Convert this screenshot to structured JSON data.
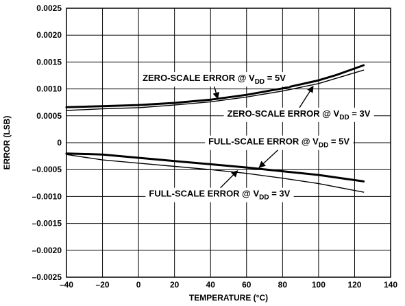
{
  "chart_data": {
    "type": "line",
    "xlabel": "TEMPERATURE (°C)",
    "ylabel": "ERROR (LSB)",
    "xlim": [
      -40,
      140
    ],
    "ylim": [
      -0.0025,
      0.0025
    ],
    "x_ticks": [
      -40,
      -20,
      0,
      20,
      40,
      60,
      80,
      100,
      120,
      140
    ],
    "x_tick_labels": [
      "–40",
      "–20",
      "0",
      "20",
      "40",
      "60",
      "80",
      "100",
      "120",
      "140"
    ],
    "y_ticks": [
      0.0025,
      0.002,
      0.0015,
      0.001,
      0.0005,
      0,
      -0.0005,
      -0.001,
      -0.0015,
      -0.002,
      -0.0025
    ],
    "y_tick_labels": [
      "0.0025",
      "0.0020",
      "0.0015",
      "0.0010",
      "0.0005",
      "0",
      "–0.0005",
      "–0.0010",
      "–0.0015",
      "–0.0020",
      "–0.0025"
    ],
    "grid": true,
    "series": [
      {
        "name": "ZERO-SCALE ERROR @ VDD = 5V",
        "style": "thick",
        "x": [
          -40,
          -20,
          0,
          20,
          40,
          60,
          80,
          100,
          110,
          125
        ],
        "y": [
          0.00066,
          0.00068,
          0.0007,
          0.00074,
          0.0008,
          0.00089,
          0.00101,
          0.00116,
          0.00126,
          0.00144
        ]
      },
      {
        "name": "ZERO-SCALE ERROR @ VDD = 3V",
        "style": "thin",
        "x": [
          -40,
          -20,
          0,
          20,
          40,
          60,
          80,
          100,
          110,
          125
        ],
        "y": [
          0.0006,
          0.00063,
          0.00065,
          0.0007,
          0.00076,
          0.00085,
          0.00096,
          0.0011,
          0.0012,
          0.00135
        ]
      },
      {
        "name": "FULL-SCALE ERROR @ VDD = 5V",
        "style": "thick",
        "x": [
          -40,
          -20,
          0,
          20,
          40,
          60,
          80,
          100,
          125
        ],
        "y": [
          -0.0002,
          -0.00022,
          -0.00028,
          -0.00034,
          -0.0004,
          -0.00046,
          -0.00053,
          -0.0006,
          -0.00072
        ]
      },
      {
        "name": "FULL-SCALE ERROR @ VDD = 3V",
        "style": "thin",
        "x": [
          -40,
          -20,
          0,
          20,
          40,
          60,
          80,
          100,
          125
        ],
        "y": [
          -0.00022,
          -0.00032,
          -0.00038,
          -0.00044,
          -0.0005,
          -0.00057,
          -0.00066,
          -0.00076,
          -0.00092
        ]
      }
    ],
    "annotations": [
      {
        "prefix": "ZERO-SCALE ERROR @ V",
        "sub": "DD",
        "suffix": " = 5V",
        "arrow_from": [
          42,
          0.00121
        ],
        "arrow_to": [
          44,
          0.00082
        ]
      },
      {
        "prefix": "ZERO-SCALE ERROR @ V",
        "sub": "DD",
        "suffix": " = 3V",
        "arrow_from": [
          89,
          0.00055
        ],
        "arrow_to": [
          97,
          0.00105
        ]
      },
      {
        "prefix": "FULL-SCALE ERROR @ V",
        "sub": "DD",
        "suffix": " = 5V",
        "arrow_from": [
          78,
          3e-05
        ],
        "arrow_to": [
          67,
          -0.00046
        ]
      },
      {
        "prefix": "FULL-SCALE ERROR @ V",
        "sub": "DD",
        "suffix": " = 3V",
        "arrow_from": [
          45,
          -0.00094
        ],
        "arrow_to": [
          55,
          -0.00052
        ]
      }
    ]
  }
}
